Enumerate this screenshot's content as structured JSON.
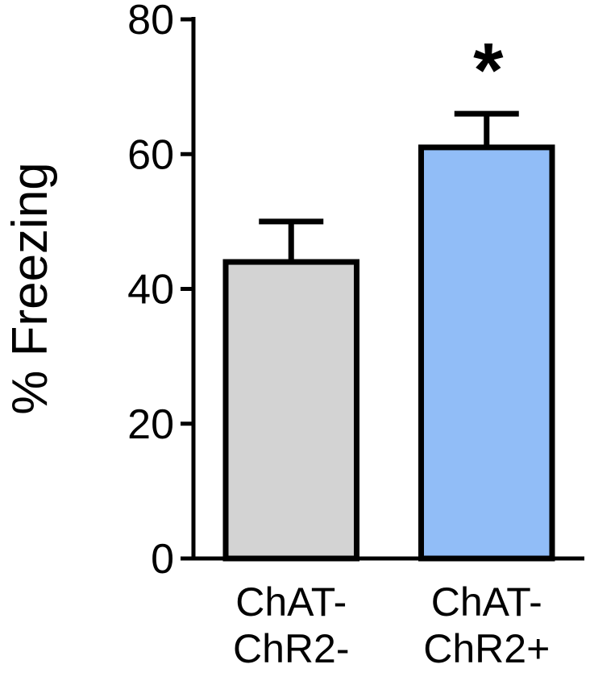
{
  "chart_data": {
    "type": "bar",
    "ylabel": "% Freezing",
    "categories": [
      "ChAT-ChR2-",
      "ChAT-ChR2+"
    ],
    "values": [
      44,
      61
    ],
    "errors": [
      6,
      5
    ],
    "colors": [
      "#d3d3d3",
      "#91bdf7"
    ],
    "ylim": [
      0,
      80
    ],
    "yticks": [
      0,
      20,
      40,
      60,
      80
    ],
    "annotation": "*"
  }
}
